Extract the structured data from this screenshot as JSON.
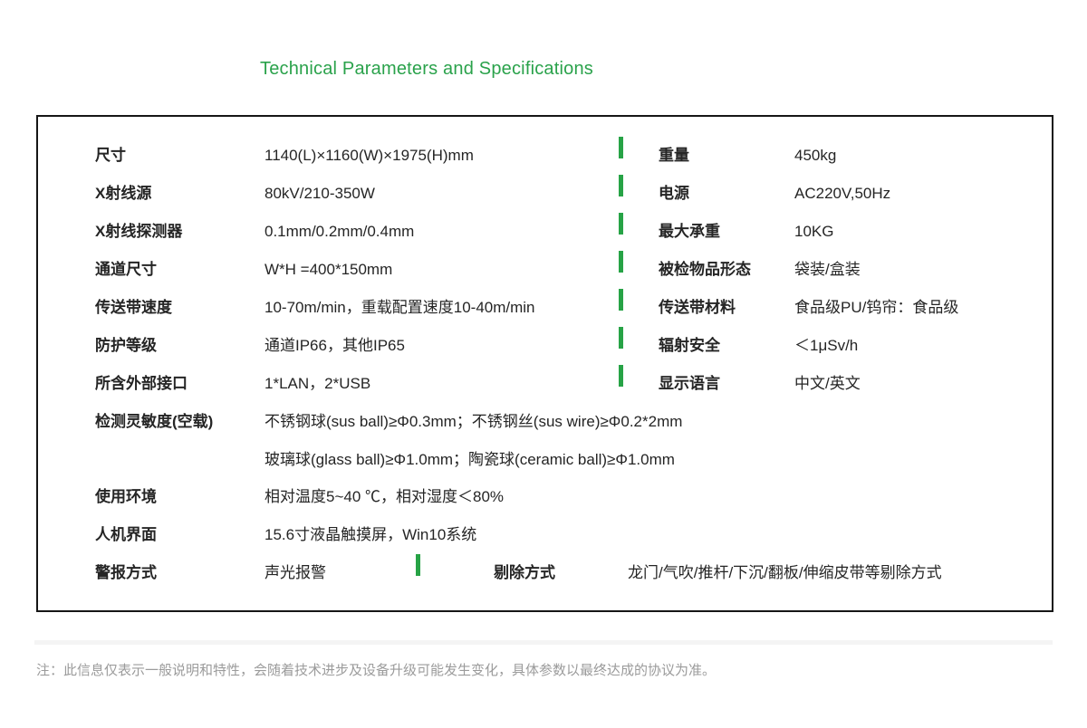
{
  "page": {
    "title": "Technical Parameters and Specifications",
    "footer_note": "注：此信息仅表示一般说明和特性，会随着技术进步及设备升级可能发生变化，具体参数以最终达成的协议为准。"
  },
  "colors": {
    "accent_green": "#27a346",
    "title_green": "#2aa24b",
    "box_border": "#161616",
    "note_gray": "#9b9b9b"
  },
  "table": {
    "rows": [
      {
        "left": {
          "label": "尺寸",
          "value": "1140(L)×1160(W)×1975(H)mm"
        },
        "right": {
          "label": "重量",
          "value": "450kg"
        }
      },
      {
        "left": {
          "label": "X射线源",
          "value": "80kV/210-350W"
        },
        "right": {
          "label": "电源",
          "value": "AC220V,50Hz"
        }
      },
      {
        "left": {
          "label": "X射线探测器",
          "value": "0.1mm/0.2mm/0.4mm"
        },
        "right": {
          "label": "最大承重",
          "value": "10KG"
        }
      },
      {
        "left": {
          "label": "通道尺寸",
          "value": "W*H =400*150mm"
        },
        "right": {
          "label": "被检物品形态",
          "value": "袋装/盒装"
        }
      },
      {
        "left": {
          "label": "传送带速度",
          "value": "10-70m/min，重载配置速度10-40m/min"
        },
        "right": {
          "label": "传送带材料",
          "value": "食品级PU/钨帘：食品级"
        }
      },
      {
        "left": {
          "label": "防护等级",
          "value": "通道IP66，其他IP65"
        },
        "right": {
          "label": "辐射安全",
          "value": "＜1μSv/h"
        }
      },
      {
        "left": {
          "label": "所含外部接口",
          "value": "1*LAN，2*USB"
        },
        "right": {
          "label": "显示语言",
          "value": "中文/英文"
        }
      },
      {
        "left": {
          "label": "检测灵敏度(空载)",
          "value": "不锈钢球(sus ball)≥Φ0.3mm；不锈钢丝(sus wire)≥Φ0.2*2mm"
        }
      },
      {
        "left": {
          "label": "",
          "value": "玻璃球(glass ball)≥Φ1.0mm；陶瓷球(ceramic ball)≥Φ1.0mm"
        }
      },
      {
        "left": {
          "label": "使用环境",
          "value": "相对温度5~40 ℃，相对湿度＜80%"
        }
      },
      {
        "left": {
          "label": "人机界面",
          "value": "15.6寸液晶触摸屏，Win10系统"
        }
      },
      {
        "left": {
          "label": "警报方式",
          "value": "声光报警"
        },
        "right": {
          "label": "剔除方式",
          "value": "龙门/气吹/推杆/下沉/翻板/伸缩皮带等剔除方式"
        }
      }
    ]
  }
}
